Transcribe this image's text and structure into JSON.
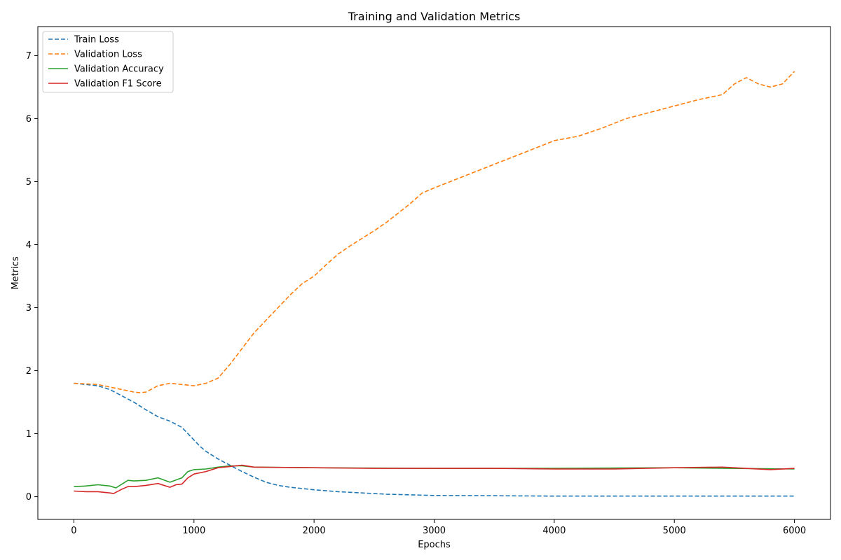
{
  "chart_data": {
    "type": "line",
    "title": "Training and Validation Metrics",
    "xlabel": "Epochs",
    "ylabel": "Metrics",
    "xlim": [
      -300,
      6300
    ],
    "ylim": [
      -0.36,
      7.46
    ],
    "xticks": [
      0,
      1000,
      2000,
      3000,
      4000,
      5000,
      6000
    ],
    "yticks": [
      0,
      1,
      2,
      3,
      4,
      5,
      6,
      7
    ],
    "grid": false,
    "legend_position": "upper-left",
    "series": [
      {
        "name": "Train Loss",
        "color": "#1f77b4",
        "style": "dashed",
        "x": [
          0,
          200,
          300,
          400,
          500,
          600,
          700,
          800,
          900,
          950,
          1000,
          1050,
          1100,
          1200,
          1300,
          1400,
          1500,
          1600,
          1700,
          1800,
          2000,
          2200,
          2400,
          2600,
          2800,
          3000,
          3500,
          4000,
          5000,
          6000
        ],
        "y": [
          1.8,
          1.76,
          1.7,
          1.6,
          1.5,
          1.38,
          1.27,
          1.2,
          1.1,
          1.0,
          0.9,
          0.8,
          0.72,
          0.6,
          0.5,
          0.4,
          0.31,
          0.23,
          0.18,
          0.15,
          0.11,
          0.08,
          0.06,
          0.04,
          0.03,
          0.02,
          0.015,
          0.01,
          0.01,
          0.01
        ]
      },
      {
        "name": "Validation Loss",
        "color": "#ff7f0e",
        "style": "dashed",
        "x": [
          0,
          200,
          300,
          400,
          500,
          550,
          600,
          700,
          800,
          900,
          1000,
          1100,
          1200,
          1300,
          1400,
          1500,
          1600,
          1700,
          1800,
          1900,
          2000,
          2100,
          2200,
          2300,
          2400,
          2500,
          2600,
          2700,
          2800,
          2900,
          3000,
          3200,
          3400,
          3600,
          3800,
          4000,
          4200,
          4400,
          4600,
          4800,
          5000,
          5200,
          5400,
          5500,
          5600,
          5700,
          5800,
          5900,
          6000
        ],
        "y": [
          1.8,
          1.78,
          1.74,
          1.7,
          1.66,
          1.65,
          1.66,
          1.76,
          1.8,
          1.78,
          1.76,
          1.8,
          1.88,
          2.1,
          2.35,
          2.6,
          2.8,
          3.0,
          3.2,
          3.38,
          3.5,
          3.68,
          3.85,
          3.98,
          4.1,
          4.22,
          4.35,
          4.5,
          4.65,
          4.82,
          4.9,
          5.05,
          5.2,
          5.35,
          5.5,
          5.65,
          5.72,
          5.85,
          6.0,
          6.1,
          6.2,
          6.3,
          6.38,
          6.55,
          6.65,
          6.55,
          6.5,
          6.55,
          6.75
        ]
      },
      {
        "name": "Validation Accuracy",
        "color": "#2ca02c",
        "style": "solid",
        "x": [
          0,
          100,
          200,
          300,
          350,
          400,
          450,
          500,
          600,
          700,
          800,
          900,
          950,
          1000,
          1100,
          1200,
          1300,
          1400,
          1500,
          2000,
          3000,
          4000,
          5000,
          6000
        ],
        "y": [
          0.16,
          0.17,
          0.19,
          0.17,
          0.14,
          0.2,
          0.26,
          0.25,
          0.26,
          0.3,
          0.23,
          0.3,
          0.4,
          0.43,
          0.44,
          0.47,
          0.49,
          0.49,
          0.47,
          0.46,
          0.45,
          0.45,
          0.46,
          0.44
        ]
      },
      {
        "name": "Validation F1 Score",
        "color": "#d62728",
        "style": "solid",
        "x": [
          0,
          100,
          200,
          300,
          330,
          400,
          450,
          500,
          600,
          700,
          800,
          850,
          900,
          950,
          1000,
          1100,
          1200,
          1300,
          1400,
          1500,
          2000,
          2500,
          3000,
          3500,
          4000,
          4500,
          5000,
          5400,
          5800,
          6000
        ],
        "y": [
          0.09,
          0.08,
          0.08,
          0.06,
          0.05,
          0.12,
          0.16,
          0.16,
          0.18,
          0.21,
          0.15,
          0.19,
          0.2,
          0.3,
          0.36,
          0.4,
          0.46,
          0.48,
          0.5,
          0.47,
          0.46,
          0.45,
          0.45,
          0.45,
          0.44,
          0.44,
          0.46,
          0.47,
          0.43,
          0.45
        ]
      }
    ]
  }
}
